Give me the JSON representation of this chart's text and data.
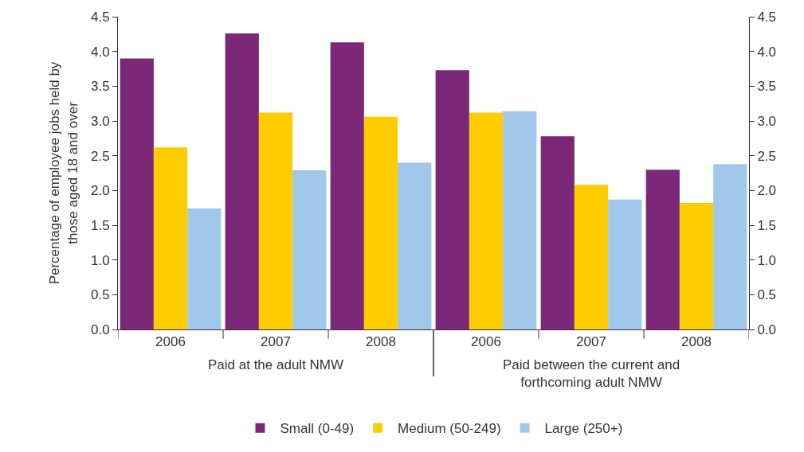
{
  "chart_data": {
    "type": "bar",
    "ylabel": "Percentage of employee jobs held by\nthose aged 18 and over",
    "categories": [
      "2006",
      "2007",
      "2008",
      "2006",
      "2007",
      "2008"
    ],
    "series": [
      {
        "name": "Small (0-49)",
        "color": "#7b2878",
        "values": [
          3.9,
          4.26,
          4.13,
          3.73,
          2.78,
          2.3
        ]
      },
      {
        "name": "Medium (50-249)",
        "color": "#ffcc00",
        "values": [
          2.62,
          3.12,
          3.06,
          3.12,
          2.08,
          1.82
        ]
      },
      {
        "name": "Large (250+)",
        "color": "#9fc8ea",
        "values": [
          1.74,
          2.29,
          2.4,
          3.14,
          1.87,
          2.38
        ]
      }
    ],
    "annotations": [
      "Paid at the adult NMW",
      "Paid between the current and\nforthcoming adult NMW"
    ],
    "ylim": [
      0,
      4.5
    ],
    "yticks": [
      {
        "value": 0,
        "label": "0.0"
      },
      {
        "value": 0.5,
        "label": "0.5"
      },
      {
        "value": 1,
        "label": "1.0"
      },
      {
        "value": 1.5,
        "label": "1.5"
      },
      {
        "value": 2,
        "label": "2.0"
      },
      {
        "value": 2.5,
        "label": "2.5"
      },
      {
        "value": 3,
        "label": "3.0"
      },
      {
        "value": 3.5,
        "label": "3.5"
      },
      {
        "value": 4,
        "label": "4.0"
      },
      {
        "value": 4.5,
        "label": "4.5"
      }
    ],
    "y2lim": [
      0,
      4.5
    ],
    "y2ticks": [
      {
        "value": 0,
        "label": "0.0"
      },
      {
        "value": 0.5,
        "label": "0.5"
      },
      {
        "value": 1,
        "label": "1.0"
      },
      {
        "value": 1.5,
        "label": "1.5"
      },
      {
        "value": 2,
        "label": "2.0"
      },
      {
        "value": 2.5,
        "label": "2.5"
      },
      {
        "value": 3,
        "label": "3.0"
      },
      {
        "value": 3.5,
        "label": "3.5"
      },
      {
        "value": 4,
        "label": "4.0"
      },
      {
        "value": 4.5,
        "label": "4.5"
      }
    ],
    "legend": "bottom"
  }
}
